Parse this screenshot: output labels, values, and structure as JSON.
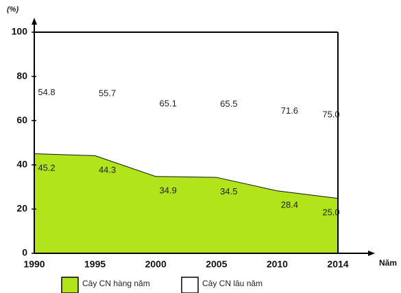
{
  "chart_data": {
    "type": "stacked_area",
    "y_label": "(%)",
    "x_label": "Năm",
    "categories": [
      "1990",
      "1995",
      "2000",
      "2005",
      "2010",
      "2014"
    ],
    "series": [
      {
        "name": "Cây CN hàng năm",
        "color": "#b2e41c",
        "values": [
          45.2,
          44.3,
          34.9,
          34.5,
          28.4,
          25.0
        ],
        "value_labels": [
          "45.2",
          "44.3",
          "34.9",
          "34.5",
          "28.4",
          "25.0"
        ]
      },
      {
        "name": "Cây CN lâu năm",
        "color": "#ffffff",
        "values": [
          54.8,
          55.7,
          65.1,
          65.5,
          71.6,
          75.0
        ],
        "value_labels": [
          "54.8",
          "55.7",
          "65.1",
          "65.5",
          "71.6",
          "75.0"
        ]
      }
    ],
    "ylim": [
      0,
      100
    ],
    "yticks": [
      0,
      20,
      40,
      60,
      80,
      100
    ],
    "legend": "bottom"
  }
}
